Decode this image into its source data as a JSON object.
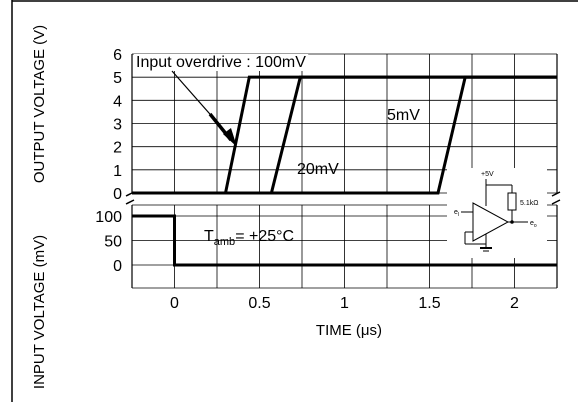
{
  "chart_data": {
    "type": "line",
    "xlabel": "TIME (μs)",
    "x_ticks": [
      0,
      0.5,
      1,
      1.5,
      2
    ],
    "x_tick_labels": [
      "0",
      "0.5",
      "1",
      "1.5",
      "2"
    ],
    "xlim": [
      -0.25,
      2.25
    ],
    "grid": true,
    "output_panel": {
      "ylabel": "OUTPUT VOLTAGE (V)",
      "ylim": [
        0,
        6
      ],
      "y_ticks": [
        0,
        1,
        2,
        3,
        4,
        5,
        6
      ],
      "y_tick_labels": [
        "0",
        "1",
        "2",
        "3",
        "4",
        "5",
        "6"
      ],
      "series": [
        {
          "name": "Input overdrive : 100mV",
          "x": [
            -0.25,
            0.3,
            0.44,
            2.25
          ],
          "y": [
            0,
            0,
            5,
            5
          ]
        },
        {
          "name": "20mV",
          "x": [
            -0.25,
            0.57,
            0.74,
            2.25
          ],
          "y": [
            0,
            0,
            5,
            5
          ]
        },
        {
          "name": "5mV",
          "x": [
            -0.25,
            1.55,
            1.71,
            2.25
          ],
          "y": [
            0,
            0,
            5,
            5
          ]
        }
      ]
    },
    "input_panel": {
      "ylabel": "INPUT VOLTAGE (mV)",
      "ylim": [
        0,
        100
      ],
      "y_ticks": [
        0,
        50,
        100
      ],
      "y_tick_labels": [
        "0",
        "50",
        "100"
      ],
      "series": [
        {
          "x": [
            -0.25,
            0,
            0,
            2.25
          ],
          "y": [
            100,
            100,
            0,
            0
          ]
        }
      ]
    },
    "annotations": {
      "overdrive_100": "Input overdrive : 100mV",
      "label_20": "20mV",
      "label_5": "5mV",
      "temp_main": "T",
      "temp_sub": "amb",
      "temp_rest": "= +25°C"
    },
    "inset": {
      "supply": "+5V",
      "resistor": "5.1kΩ",
      "input": "e",
      "input_sub": "I",
      "output": "e",
      "output_sub": "o"
    }
  }
}
